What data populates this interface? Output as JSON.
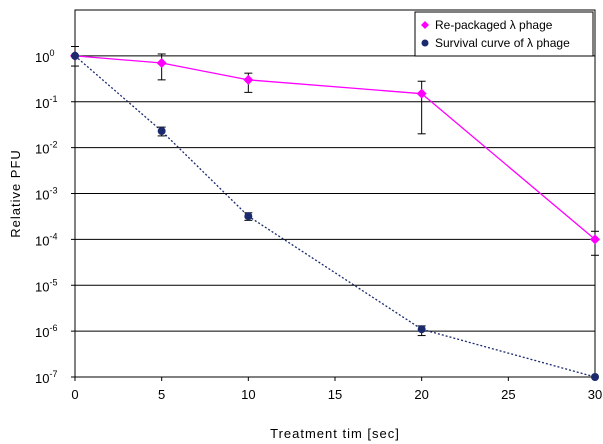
{
  "chart_data": {
    "type": "line",
    "xlabel": "Treatment tim [sec]",
    "ylabel": "Relative PFU",
    "xlim": [
      0,
      30
    ],
    "ylim": [
      1e-07,
      10
    ],
    "y_scale": "log",
    "x_ticks": [
      0,
      5,
      10,
      15,
      20,
      25,
      30
    ],
    "y_ticks": [
      {
        "exp": "0",
        "value": 1
      },
      {
        "exp": "-1",
        "value": 0.1
      },
      {
        "exp": "-2",
        "value": 0.01
      },
      {
        "exp": "-3",
        "value": 0.001
      },
      {
        "exp": "-4",
        "value": 0.0001
      },
      {
        "exp": "-5",
        "value": 1e-05
      },
      {
        "exp": "-6",
        "value": 1e-06
      },
      {
        "exp": "-7",
        "value": 1e-07
      }
    ],
    "y_tick_base": "10",
    "grid": "horizontal",
    "legend_position": "top-right",
    "series": [
      {
        "name": "Re-packaged λ phage",
        "color": "#ff00ff",
        "marker": "diamond",
        "line_style": "solid",
        "points": [
          {
            "x": 0,
            "y": 1,
            "err_low": 1,
            "err_high": 1
          },
          {
            "x": 5,
            "y": 0.7,
            "err_low": 0.3,
            "err_high": 1.1
          },
          {
            "x": 10,
            "y": 0.3,
            "err_low": 0.16,
            "err_high": 0.42
          },
          {
            "x": 20,
            "y": 0.15,
            "err_low": 0.02,
            "err_high": 0.28
          },
          {
            "x": 30,
            "y": 0.0001,
            "err_low": 4.5e-05,
            "err_high": 0.00015
          }
        ]
      },
      {
        "name": "Survival curve of λ phage",
        "color": "#1a2a6c",
        "marker": "circle",
        "line_style": "dotted",
        "points": [
          {
            "x": 0,
            "y": 1,
            "err_low": 0.6,
            "err_high": 1.6
          },
          {
            "x": 5,
            "y": 0.023,
            "err_low": 0.018,
            "err_high": 0.028
          },
          {
            "x": 10,
            "y": 0.00032,
            "err_low": 0.00026,
            "err_high": 0.00038
          },
          {
            "x": 20,
            "y": 1.1e-06,
            "err_low": 8e-07,
            "err_high": 1.3e-06
          },
          {
            "x": 30,
            "y": 1e-07,
            "err_low": 1e-07,
            "err_high": 1e-07
          }
        ]
      }
    ]
  }
}
